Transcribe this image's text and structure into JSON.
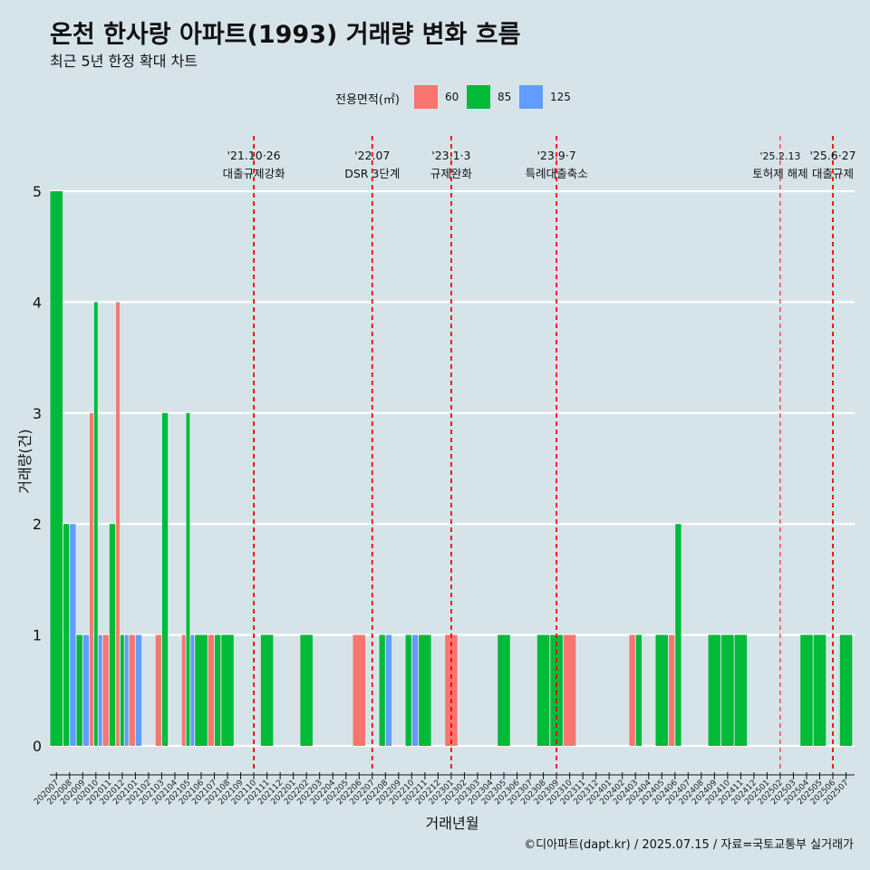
{
  "header": {
    "title": "온천 한사랑 아파트(1993) 거래량 변화 흐름",
    "subtitle": "최근 5년 한정 확대 차트"
  },
  "legend": {
    "title": "전용면적(㎡)",
    "items": [
      {
        "label": "60",
        "color": "#F8766D"
      },
      {
        "label": "85",
        "color": "#00BA38"
      },
      {
        "label": "125",
        "color": "#619CFF"
      }
    ]
  },
  "caption": "©디아파트(dapt.kr) / 2025.07.15 / 자료=국토교통부 실거래가",
  "chart_data": {
    "type": "bar",
    "title": "온천 한사랑 아파트(1993) 거래량 변화 흐름",
    "subtitle": "최근 5년 한정 확대 차트",
    "xlabel": "거래년월",
    "ylabel": "거래량(건)",
    "ylim": [
      0,
      5
    ],
    "yticks": [
      0,
      1,
      2,
      3,
      4,
      5
    ],
    "grid": true,
    "legend_placement": "top",
    "categories": [
      "202007",
      "202008",
      "202009",
      "202010",
      "202011",
      "202012",
      "202101",
      "202102",
      "202103",
      "202104",
      "202105",
      "202106",
      "202107",
      "202108",
      "202109",
      "202110",
      "202111",
      "202112",
      "202201",
      "202202",
      "202203",
      "202204",
      "202205",
      "202206",
      "202207",
      "202208",
      "202209",
      "202210",
      "202211",
      "202212",
      "202301",
      "202302",
      "202303",
      "202304",
      "202305",
      "202306",
      "202307",
      "202308",
      "202309",
      "202310",
      "202311",
      "202312",
      "202401",
      "202402",
      "202403",
      "202404",
      "202405",
      "202406",
      "202407",
      "202408",
      "202409",
      "202410",
      "202411",
      "202412",
      "202501",
      "202502",
      "202503",
      "202504",
      "202505",
      "202506",
      "202507"
    ],
    "series": [
      {
        "name": "60",
        "values": [
          0,
          0,
          0,
          3,
          1,
          4,
          1,
          0,
          1,
          0,
          1,
          0,
          1,
          0,
          0,
          0,
          0,
          0,
          0,
          0,
          0,
          0,
          0,
          1,
          0,
          0,
          0,
          0,
          0,
          0,
          1,
          0,
          0,
          0,
          0,
          0,
          0,
          0,
          0,
          1,
          0,
          0,
          0,
          0,
          1,
          0,
          0,
          1,
          0,
          0,
          0,
          0,
          0,
          0,
          0,
          0,
          0,
          0,
          0,
          0,
          0
        ]
      },
      {
        "name": "85",
        "values": [
          5,
          2,
          1,
          4,
          2,
          1,
          0,
          0,
          3,
          0,
          3,
          1,
          1,
          1,
          0,
          0,
          1,
          0,
          0,
          1,
          0,
          0,
          0,
          0,
          0,
          1,
          0,
          1,
          1,
          0,
          0,
          0,
          0,
          0,
          1,
          0,
          0,
          1,
          1,
          0,
          0,
          0,
          0,
          0,
          1,
          0,
          1,
          2,
          0,
          0,
          1,
          1,
          1,
          0,
          0,
          0,
          0,
          1,
          1,
          0,
          1
        ]
      },
      {
        "name": "125",
        "values": [
          0,
          2,
          1,
          1,
          0,
          1,
          1,
          0,
          0,
          0,
          1,
          0,
          0,
          0,
          0,
          0,
          0,
          0,
          0,
          0,
          0,
          0,
          0,
          0,
          0,
          1,
          0,
          1,
          0,
          0,
          0,
          0,
          0,
          0,
          0,
          0,
          0,
          0,
          0,
          0,
          0,
          0,
          0,
          0,
          0,
          0,
          0,
          0,
          0,
          0,
          0,
          0,
          0,
          0,
          0,
          0,
          0,
          0,
          0,
          0,
          0
        ]
      }
    ],
    "annotations": [
      {
        "x": "202110",
        "date": "'21.10·26",
        "text": "대출규제강화"
      },
      {
        "x": "202207",
        "date": "'22.07",
        "text": "DSR 3단계"
      },
      {
        "x": "202301",
        "date": "'23.1·3",
        "text": "규제완화"
      },
      {
        "x": "202309",
        "date": "'23.9·7",
        "text": "특례대출축소"
      },
      {
        "x": "202502",
        "date": "'25.2.13",
        "text": "토허제 해제"
      },
      {
        "x": "202506",
        "date": "'25.6·27",
        "text": "대출규제"
      }
    ]
  }
}
